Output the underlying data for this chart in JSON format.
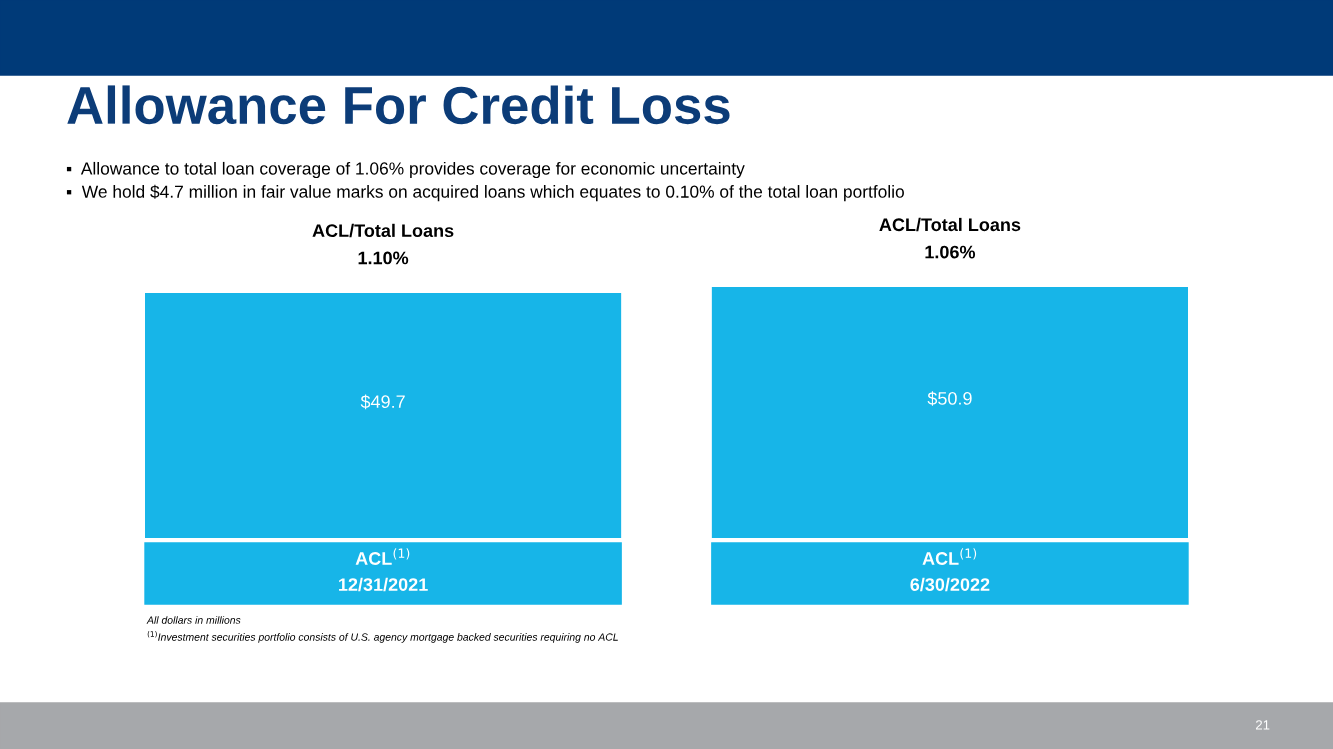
{
  "chart_data": {
    "type": "bar",
    "title": "Allowance For Credit Loss",
    "categories": [
      "ACL$^{(1)}$\n12/31/2021",
      "ACL$^{(1)}$\n6/30/2022"
    ],
    "values": [
      49.7,
      50.9
    ],
    "color": "#17b5e8",
    "value_labels": [
      "$49.7",
      "$50.9"
    ],
    "annotations": [
      "▪  Allowance to total loan coverage of 1.06% provides coverage for economic uncertainty",
      "▪  We hold $4.7 million in fair value marks on acquired loans which equates to 0.10% of the total loan portfolio",
      {
        "text": "ACL/Total Loans\n1.10%",
        "x": "ACL$^{(1)}$\n12/31/2021",
        "y": 49.7
      },
      {
        "text": "ACL/Total Loans\n1.06%",
        "x": "ACL$^{(1)}$\n6/30/2022",
        "y": 50.9
      },
      "All dollars in millions",
      "$^{(1)}$Investment securities portfolio consists of U.S. agency mortgage backed securities requiring no ACL",
      "21"
    ]
  }
}
